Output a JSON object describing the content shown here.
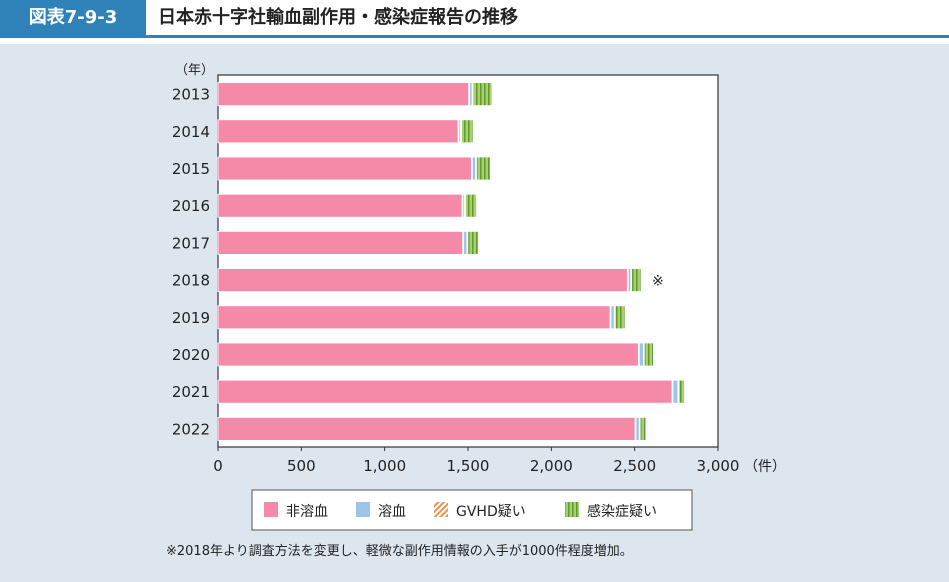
{
  "header": {
    "figure_no": "図表7-9-3",
    "title": "日本赤十字社輸血副作用・感染症報告の推移"
  },
  "note": "※2018年より調査方法を変更し、軽微な副作用情報の入手が1000件程度増加。",
  "chart_data": {
    "type": "bar",
    "orientation": "horizontal",
    "stacked": true,
    "categories": [
      "2013",
      "2014",
      "2015",
      "2016",
      "2017",
      "2018",
      "2019",
      "2020",
      "2021",
      "2022"
    ],
    "ylabel": "（年）",
    "xlabel": "（件）",
    "xlim": [
      0,
      3000
    ],
    "xticks": [
      "0",
      "500",
      "1,000",
      "1,500",
      "2,000",
      "2,500",
      "3,000"
    ],
    "annotation": {
      "category": "2018",
      "text": "※"
    },
    "legend_position": "bottom",
    "series": [
      {
        "name": "非溶血",
        "color": "#f48aa8",
        "values": [
          1510,
          1446,
          1526,
          1470,
          1474,
          2462,
          2358,
          2528,
          2730,
          2508
        ]
      },
      {
        "name": "溶血",
        "color": "#9cc3e8",
        "values": [
          20,
          15,
          25,
          15,
          25,
          20,
          25,
          30,
          35,
          25
        ]
      },
      {
        "name": "GVHD疑い",
        "color": "#f0904a",
        "values": [
          0,
          0,
          0,
          0,
          0,
          0,
          0,
          0,
          0,
          0
        ]
      },
      {
        "name": "感染症疑い",
        "color": "#8cc04e",
        "values": [
          120,
          75,
          90,
          72,
          70,
          62,
          65,
          60,
          40,
          40
        ]
      }
    ]
  }
}
